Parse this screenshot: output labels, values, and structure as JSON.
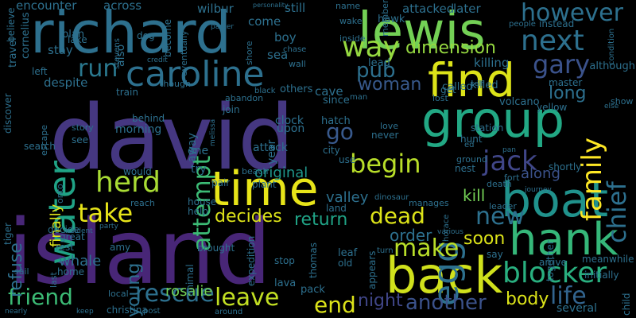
{
  "background": "#000000",
  "words": [
    {
      "t": "david",
      "c": "#453781"
    },
    {
      "t": "island",
      "c": "#482677"
    },
    {
      "t": "richard",
      "c": "#2d708e"
    },
    {
      "t": "lewis",
      "c": "#73d055"
    },
    {
      "t": "group",
      "c": "#22a884"
    },
    {
      "t": "find",
      "c": "#dce319"
    },
    {
      "t": "time",
      "c": "#e7e419"
    },
    {
      "t": "boat",
      "c": "#20928c"
    },
    {
      "t": "hank",
      "c": "#35b779"
    },
    {
      "t": "back",
      "c": "#d0e11c"
    },
    {
      "t": "water",
      "c": "#20a386"
    },
    {
      "t": "caroline",
      "c": "#2d708e"
    },
    {
      "t": "herd",
      "c": "#a8db34"
    },
    {
      "t": "next",
      "c": "#2d708e"
    },
    {
      "t": "gary",
      "c": "#3b528b"
    },
    {
      "t": "however",
      "c": "#2d708e"
    },
    {
      "t": "way",
      "c": "#95d840"
    },
    {
      "t": "run",
      "c": "#2a788e"
    },
    {
      "t": "blocker",
      "c": "#29af7f"
    },
    {
      "t": "family",
      "c": "#fde725"
    },
    {
      "t": "chief",
      "c": "#2d708e"
    },
    {
      "t": "jack",
      "c": "#404688"
    },
    {
      "t": "egg",
      "c": "#2d708e"
    },
    {
      "t": "begin",
      "c": "#b8de29"
    },
    {
      "t": "attempt",
      "c": "#3cbb75"
    },
    {
      "t": "take",
      "c": "#e7e419"
    },
    {
      "t": "rescue",
      "c": "#2d708e"
    },
    {
      "t": "leave",
      "c": "#c2df23"
    },
    {
      "t": "friend",
      "c": "#3cbb75"
    },
    {
      "t": "make",
      "c": "#b8de29"
    },
    {
      "t": "dead",
      "c": "#dce319"
    },
    {
      "t": "new",
      "c": "#2d708e"
    },
    {
      "t": "return",
      "c": "#20a386"
    },
    {
      "t": "end",
      "c": "#dce319"
    },
    {
      "t": "another",
      "c": "#3b528b"
    },
    {
      "t": "life",
      "c": "#32648e"
    },
    {
      "t": "body",
      "c": "#dce319"
    },
    {
      "t": "night",
      "c": "#404688"
    },
    {
      "t": "dimension",
      "c": "#95d840"
    },
    {
      "t": "pub",
      "c": "#2d708e"
    },
    {
      "t": "woman",
      "c": "#38598c"
    },
    {
      "t": "long",
      "c": "#2d708e"
    },
    {
      "t": "decides",
      "c": "#dce319"
    },
    {
      "t": "soon",
      "c": "#dce319"
    },
    {
      "t": "order",
      "c": "#2d708e"
    },
    {
      "t": "young",
      "c": "#2d708e"
    },
    {
      "t": "refuse",
      "c": "#2d708e"
    },
    {
      "t": "whale",
      "c": "#2d708e"
    },
    {
      "t": "rosalie",
      "c": "#73d055"
    },
    {
      "t": "finally",
      "c": "#dce319"
    },
    {
      "t": "kill",
      "c": "#73d055"
    },
    {
      "t": "go",
      "c": "#38598c"
    },
    {
      "t": "original",
      "c": "#1f968b"
    },
    {
      "t": "valley",
      "c": "#2d708e"
    },
    {
      "t": "along",
      "c": "#3b528b"
    },
    {
      "t": "encounter",
      "c": "#2d708e"
    },
    {
      "t": "across",
      "c": "#2d708e"
    },
    {
      "t": "wilbur",
      "c": "#2d708e"
    },
    {
      "t": "still",
      "c": "#2d708e"
    },
    {
      "t": "attacked",
      "c": "#2d708e"
    },
    {
      "t": "later",
      "c": "#2d708e"
    },
    {
      "t": "come",
      "c": "#2d708e"
    },
    {
      "t": "boy",
      "c": "#2d708e"
    },
    {
      "t": "sea",
      "c": "#2d708e"
    },
    {
      "t": "stay",
      "c": "#2d708e"
    },
    {
      "t": "travel",
      "c": "#2d708e"
    },
    {
      "t": "plan",
      "c": "#2d708e"
    },
    {
      "t": "despite",
      "c": "#2d708e"
    },
    {
      "t": "killing",
      "c": "#2d708e"
    },
    {
      "t": "lead",
      "c": "#2d708e"
    },
    {
      "t": "hawk",
      "c": "#2d708e"
    },
    {
      "t": "cave",
      "c": "#2d708e"
    },
    {
      "t": "called",
      "c": "#2d708e"
    },
    {
      "t": "killed",
      "c": "#2d708e"
    },
    {
      "t": "volcano",
      "c": "#2d708e"
    },
    {
      "t": "master",
      "c": "#2d708e"
    },
    {
      "t": "yellow",
      "c": "#2d708e"
    },
    {
      "t": "although",
      "c": "#2d708e"
    },
    {
      "t": "instead",
      "c": "#2d708e"
    },
    {
      "t": "morning",
      "c": "#2d708e"
    },
    {
      "t": "away",
      "c": "#2d708e"
    },
    {
      "t": "one",
      "c": "#2d708e"
    },
    {
      "t": "try",
      "c": "#2d708e"
    },
    {
      "t": "year",
      "c": "#2d708e"
    },
    {
      "t": "attack",
      "c": "#2d708e"
    },
    {
      "t": "upon",
      "c": "#2d708e"
    },
    {
      "t": "clock",
      "c": "#2d708e"
    },
    {
      "t": "never",
      "c": "#2d708e"
    },
    {
      "t": "city",
      "c": "#2d708e"
    },
    {
      "t": "hatch",
      "c": "#2d708e"
    },
    {
      "t": "since",
      "c": "#2d708e"
    },
    {
      "t": "others",
      "c": "#2d708e"
    },
    {
      "t": "join",
      "c": "#2d708e"
    },
    {
      "t": "train",
      "c": "#2d708e"
    },
    {
      "t": "behind",
      "c": "#2d708e"
    },
    {
      "t": "also",
      "c": "#2d708e"
    },
    {
      "t": "dog",
      "c": "#2d708e"
    },
    {
      "t": "lake",
      "c": "#2d708e"
    },
    {
      "t": "cornelius",
      "c": "#2d708e"
    },
    {
      "t": "believe",
      "c": "#2d708e"
    },
    {
      "t": "left",
      "c": "#2d708e"
    },
    {
      "t": "discover",
      "c": "#2d708e"
    },
    {
      "t": "escape",
      "c": "#2d708e"
    },
    {
      "t": "search",
      "c": "#2d708e"
    },
    {
      "t": "see",
      "c": "#2d708e"
    },
    {
      "t": "story",
      "c": "#2d708e"
    },
    {
      "t": "onto",
      "c": "#2d708e"
    },
    {
      "t": "would",
      "c": "#2d708e"
    },
    {
      "t": "reach",
      "c": "#2d708e"
    },
    {
      "t": "house",
      "c": "#2d708e"
    },
    {
      "t": "help",
      "c": "#2d708e"
    },
    {
      "t": "pair",
      "c": "#2d708e"
    },
    {
      "t": "plant",
      "c": "#2d708e"
    },
    {
      "t": "beach",
      "c": "#2d708e"
    },
    {
      "t": "land",
      "c": "#2d708e"
    },
    {
      "t": "manages",
      "c": "#2d708e"
    },
    {
      "t": "leader",
      "c": "#2d708e"
    },
    {
      "t": "appears",
      "c": "#2d708e"
    },
    {
      "t": "leaf",
      "c": "#2d708e"
    },
    {
      "t": "old",
      "c": "#2d708e"
    },
    {
      "t": "stop",
      "c": "#2d708e"
    },
    {
      "t": "turn",
      "c": "#2d708e"
    },
    {
      "t": "say",
      "c": "#2d708e"
    },
    {
      "t": "arrive",
      "c": "#2d708e"
    },
    {
      "t": "meanwhile",
      "c": "#2d708e"
    },
    {
      "t": "together",
      "c": "#2d708e"
    },
    {
      "t": "initially",
      "c": "#2d708e"
    },
    {
      "t": "several",
      "c": "#2d708e"
    },
    {
      "t": "child",
      "c": "#2d708e"
    },
    {
      "t": "lava",
      "c": "#2d708e"
    },
    {
      "t": "pack",
      "c": "#2d708e"
    },
    {
      "t": "thomas",
      "c": "#2d708e"
    },
    {
      "t": "christina",
      "c": "#2d708e"
    },
    {
      "t": "local",
      "c": "#2d708e"
    },
    {
      "t": "amy",
      "c": "#2d708e"
    },
    {
      "t": "rest",
      "c": "#2d708e"
    },
    {
      "t": "great",
      "c": "#2d708e"
    },
    {
      "t": "decide",
      "c": "#2d708e"
    },
    {
      "t": "sail",
      "c": "#2d708e"
    },
    {
      "t": "home",
      "c": "#2d708e"
    },
    {
      "t": "last",
      "c": "#2d708e"
    },
    {
      "t": "tiger",
      "c": "#2d708e"
    },
    {
      "t": "brought",
      "c": "#2d708e"
    },
    {
      "t": "animal",
      "c": "#2d708e"
    },
    {
      "t": "expedition",
      "c": "#2d708e"
    },
    {
      "t": "shortly",
      "c": "#2d708e"
    },
    {
      "t": "ground",
      "c": "#2d708e"
    },
    {
      "t": "nest",
      "c": "#2d708e"
    },
    {
      "t": "death",
      "c": "#2d708e"
    },
    {
      "t": "fort",
      "c": "#2d708e"
    },
    {
      "t": "hunt",
      "c": "#2d708e"
    },
    {
      "t": "love",
      "c": "#2d708e"
    },
    {
      "t": "use",
      "c": "#2d708e"
    },
    {
      "t": "get",
      "c": "#2d708e"
    },
    {
      "t": "lost",
      "c": "#2d708e"
    },
    {
      "t": "wake",
      "c": "#2d708e"
    },
    {
      "t": "inside",
      "c": "#2d708e"
    },
    {
      "t": "shore",
      "c": "#2d708e"
    },
    {
      "t": "though",
      "c": "#2d708e"
    },
    {
      "t": "eventually",
      "c": "#2d708e"
    },
    {
      "t": "become",
      "c": "#2d708e"
    },
    {
      "t": "stevens",
      "c": "#2d708e"
    },
    {
      "t": "abandon",
      "c": "#2d708e"
    },
    {
      "t": "black",
      "c": "#2d708e"
    },
    {
      "t": "wall",
      "c": "#2d708e"
    },
    {
      "t": "name",
      "c": "#2d708e"
    },
    {
      "t": "member",
      "c": "#2d708e"
    },
    {
      "t": "people",
      "c": "#2d708e"
    },
    {
      "t": "man",
      "c": "#2d708e"
    },
    {
      "t": "self",
      "c": "#2d708e"
    },
    {
      "t": "pan",
      "c": "#2d708e"
    },
    {
      "t": "journey",
      "c": "#2d708e"
    },
    {
      "t": "condition",
      "c": "#2d708e"
    },
    {
      "t": "show",
      "c": "#2d708e"
    },
    {
      "t": "else",
      "c": "#2d708e"
    },
    {
      "t": "party",
      "c": "#2d708e"
    },
    {
      "t": "resident",
      "c": "#2d708e"
    },
    {
      "t": "post",
      "c": "#2d708e"
    },
    {
      "t": "keep",
      "c": "#2d708e"
    },
    {
      "t": "around",
      "c": "#2d708e"
    },
    {
      "t": "dinosaur",
      "c": "#2d708e"
    },
    {
      "t": "horace",
      "c": "#2d708e"
    },
    {
      "t": "various",
      "c": "#2d708e"
    },
    {
      "t": "chase",
      "c": "#2d708e"
    },
    {
      "t": "parker",
      "c": "#2d708e"
    },
    {
      "t": "credit",
      "c": "#2d708e"
    },
    {
      "t": "melissa",
      "c": "#2d708e"
    },
    {
      "t": "station",
      "c": "#2d708e"
    },
    {
      "t": "ed",
      "c": "#2d708e"
    },
    {
      "t": "nearly",
      "c": "#2d708e"
    },
    {
      "t": "personality",
      "c": "#2d708e"
    },
    {
      "t": "leaving",
      "c": "#2d708e"
    }
  ]
}
